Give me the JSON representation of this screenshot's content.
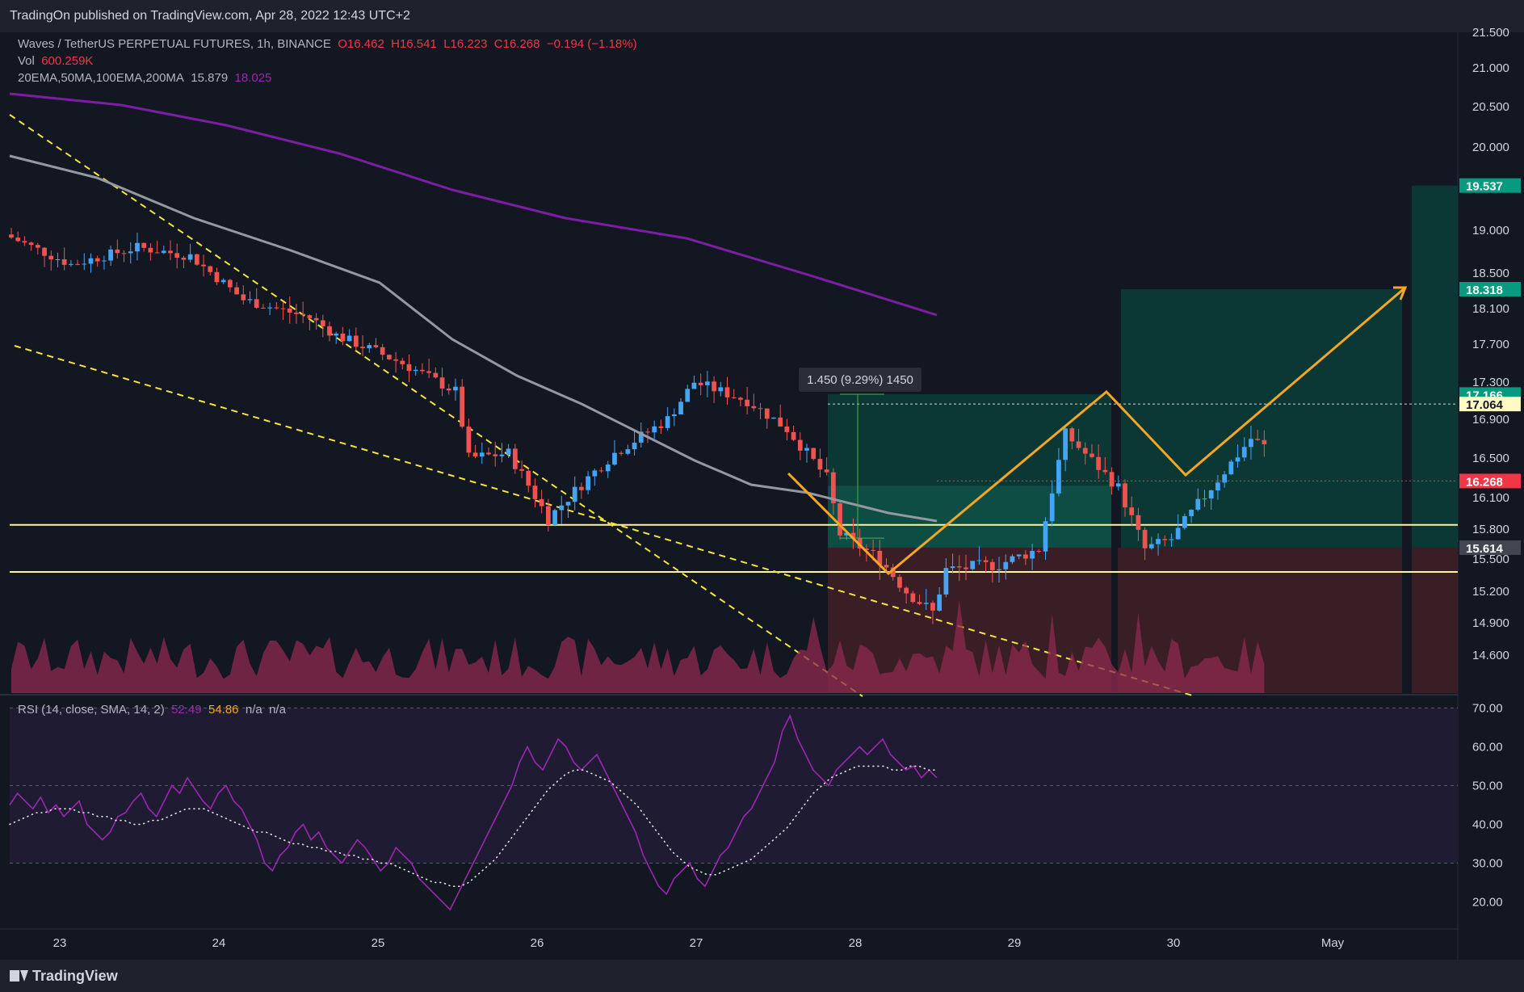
{
  "header": {
    "published": "TradingOn published on TradingView.com, Apr 28, 2022 12:43 UTC+2"
  },
  "legend": {
    "symbol": "Waves / TetherUS PERPETUAL FUTURES, 1h, BINANCE",
    "open": "O16.462",
    "high": "H16.541",
    "low": "L16.223",
    "close": "C16.268",
    "change": "−0.194 (−1.18%)",
    "vol_label": "Vol",
    "vol_value": "600.259K",
    "ma_label": "20EMA,50MA,100EMA,200MA",
    "ma_value1": "15.879",
    "ma_value2": "18.025",
    "rsi_label": "RSI (14, close, SMA, 14, 2)",
    "rsi_value": "52.49",
    "rsi_sma": "54.86",
    "rsi_na1": "n/a",
    "rsi_na2": "n/a"
  },
  "measure_label": "1.450 (9.29%) 1450",
  "footer": {
    "brand": "TradingView"
  },
  "colors": {
    "bg": "#131722",
    "up": "#42a5f5",
    "down": "#ef5350",
    "ma100": "#9598a1",
    "ma200": "#7b1fa2",
    "projection": "#f5a623",
    "trend": "#f5e63a",
    "rsi": "#9c27b0"
  },
  "chart_data": [
    {
      "type": "candlestick",
      "title": "Waves / TetherUS PERPETUAL FUTURES, 1h, BINANCE",
      "y_ticks": [
        "21.500",
        "21.000",
        "20.500",
        "20.000",
        "19.000",
        "18.500",
        "18.100",
        "17.700",
        "17.300",
        "16.900",
        "16.500",
        "16.100",
        "15.800",
        "15.500",
        "15.200",
        "14.900",
        "14.600"
      ],
      "x_ticks": [
        "23",
        "24",
        "25",
        "26",
        "27",
        "28",
        "29",
        "30",
        "May"
      ],
      "price_badges": [
        {
          "label": "19.537",
          "color": "#089981"
        },
        {
          "label": "18.318",
          "color": "#089981"
        },
        {
          "label": "17.166",
          "color": "#089981"
        },
        {
          "label": "17.064",
          "color": "#fff9c4"
        },
        {
          "label": "16.268",
          "color": "#f23645"
        },
        {
          "label": "15.614",
          "color": "#434651"
        }
      ],
      "levels": [
        15.84,
        15.38
      ],
      "current_price": 16.268
    },
    {
      "type": "line",
      "title": "RSI (14, close, SMA, 14, 2)",
      "y_ticks": [
        "70.00",
        "60.00",
        "50.00",
        "40.00",
        "30.00",
        "20.00"
      ],
      "ylim": [
        13,
        73
      ],
      "bands": [
        70,
        50,
        30
      ],
      "rsi": [
        45,
        48,
        46,
        44,
        47,
        43,
        45,
        42,
        44,
        46,
        40,
        38,
        36,
        38,
        42,
        43,
        46,
        48,
        44,
        42,
        46,
        50,
        48,
        52,
        49,
        46,
        44,
        48,
        50,
        46,
        44,
        40,
        36,
        30,
        28,
        32,
        34,
        38,
        40,
        36,
        38,
        34,
        32,
        30,
        33,
        36,
        34,
        31,
        28,
        30,
        34,
        32,
        30,
        26,
        24,
        22,
        20,
        18,
        22,
        26,
        30,
        34,
        38,
        42,
        46,
        50,
        56,
        60,
        56,
        54,
        58,
        62,
        60,
        56,
        54,
        56,
        58,
        54,
        50,
        46,
        42,
        38,
        32,
        28,
        24,
        22,
        26,
        28,
        30,
        26,
        24,
        28,
        32,
        34,
        38,
        42,
        44,
        48,
        52,
        56,
        64,
        68,
        62,
        58,
        54,
        52,
        50,
        54,
        56,
        58,
        60,
        58,
        60,
        62,
        58,
        56,
        54,
        55,
        52,
        54,
        52
      ],
      "rsi_sma": [
        40,
        41,
        42,
        43,
        43,
        44,
        44,
        44,
        43,
        43,
        42,
        42,
        41,
        41,
        40,
        40,
        41,
        41,
        42,
        43,
        44,
        44,
        44,
        43,
        42,
        41,
        40,
        39,
        38,
        38,
        37,
        36,
        35,
        35,
        34,
        34,
        33,
        33,
        32,
        32,
        31,
        31,
        30,
        30,
        29,
        28,
        27,
        26,
        25,
        25,
        24,
        24,
        25,
        27,
        29,
        31,
        34,
        37,
        40,
        43,
        46,
        49,
        51,
        53,
        54,
        54,
        53,
        52,
        51,
        49,
        47,
        45,
        42,
        39,
        36,
        33,
        31,
        29,
        28,
        27,
        27,
        28,
        29,
        30,
        31,
        33,
        35,
        37,
        39,
        42,
        45,
        48,
        50,
        52,
        53,
        54,
        55,
        55,
        55,
        55,
        54,
        54,
        55,
        55,
        54,
        54
      ]
    }
  ]
}
